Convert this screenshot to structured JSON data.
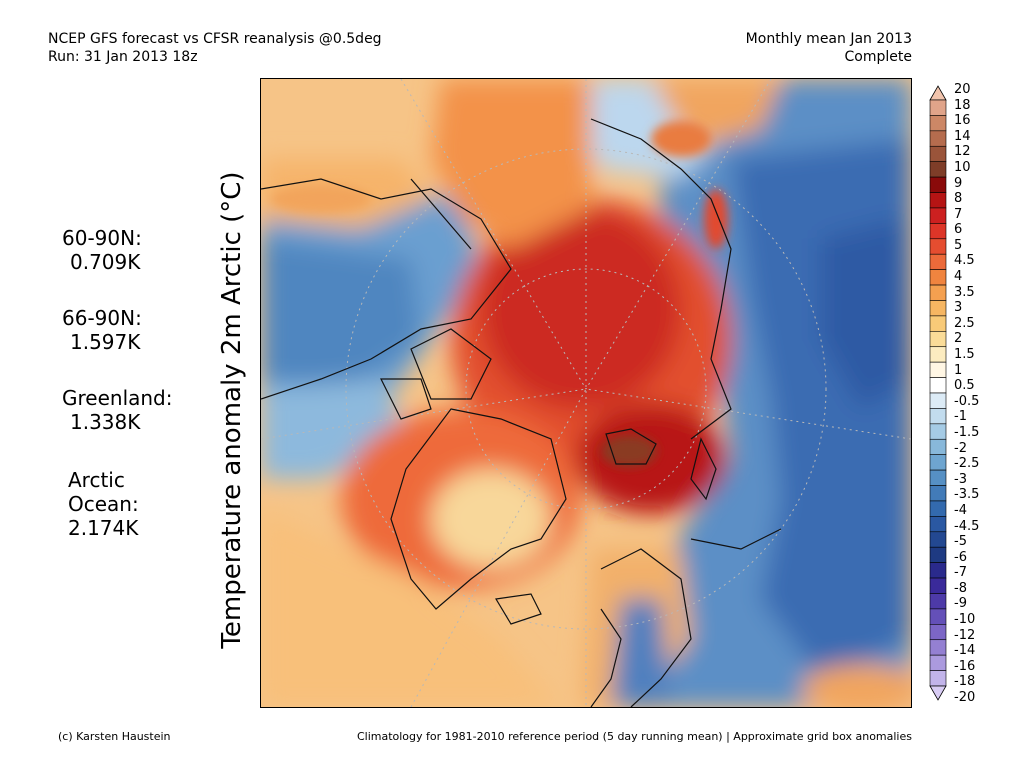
{
  "header": {
    "title_line1": "NCEP GFS forecast vs CFSR reanalysis @0.5deg",
    "title_line2": "Run: 31 Jan 2013 18z",
    "right_line1": "Monthly mean Jan 2013",
    "right_line2": "Complete"
  },
  "stats": [
    {
      "label": "60-90N:",
      "value": "0.709K"
    },
    {
      "label": "66-90N:",
      "value": "1.597K"
    },
    {
      "label": "Greenland:",
      "value": "1.338K"
    },
    {
      "label": "Arctic",
      "label2": "Ocean:",
      "value": "2.174K"
    }
  ],
  "ylabel": "Temperature anomaly 2m Arctic (°C)",
  "colorbar": {
    "levels": [
      "20",
      "18",
      "16",
      "14",
      "12",
      "10",
      "9",
      "8",
      "7",
      "6",
      "5",
      "4.5",
      "4",
      "3.5",
      "3",
      "2.5",
      "2",
      "1.5",
      "1",
      "0.5",
      "-0.5",
      "-1",
      "-1.5",
      "-2",
      "-2.5",
      "-3",
      "-3.5",
      "-4",
      "-4.5",
      "-5",
      "-6",
      "-7",
      "-8",
      "-9",
      "-10",
      "-12",
      "-14",
      "-16",
      "-18",
      "-20"
    ],
    "colors": [
      "#f1c4ad",
      "#e0a48a",
      "#cc8766",
      "#b56c4e",
      "#9a543a",
      "#7e3d28",
      "#8a0a0a",
      "#b51414",
      "#cc2020",
      "#dd3528",
      "#e54d30",
      "#ec6a3a",
      "#f0843f",
      "#f4a050",
      "#f6b662",
      "#f8ca78",
      "#fadc98",
      "#fcecc0",
      "#fff6e4",
      "#ffffff",
      "#dcebf6",
      "#c2dcee",
      "#a5cbe5",
      "#88b8da",
      "#6ea5d0",
      "#5690c4",
      "#427bb8",
      "#336aae",
      "#2a58a2",
      "#234891",
      "#1e3a82",
      "#2a2a8c",
      "#3a2a9a",
      "#4d3aa8",
      "#6450b8",
      "#7c66c6",
      "#9480d2",
      "#ab9ade",
      "#c2b4ea",
      "#d8ccf4"
    ]
  },
  "footer": {
    "left": "(c) Karsten Haustein",
    "right": "Climatology for 1981-2010 reference period (5 day running mean) | Approximate grid box anomalies"
  }
}
